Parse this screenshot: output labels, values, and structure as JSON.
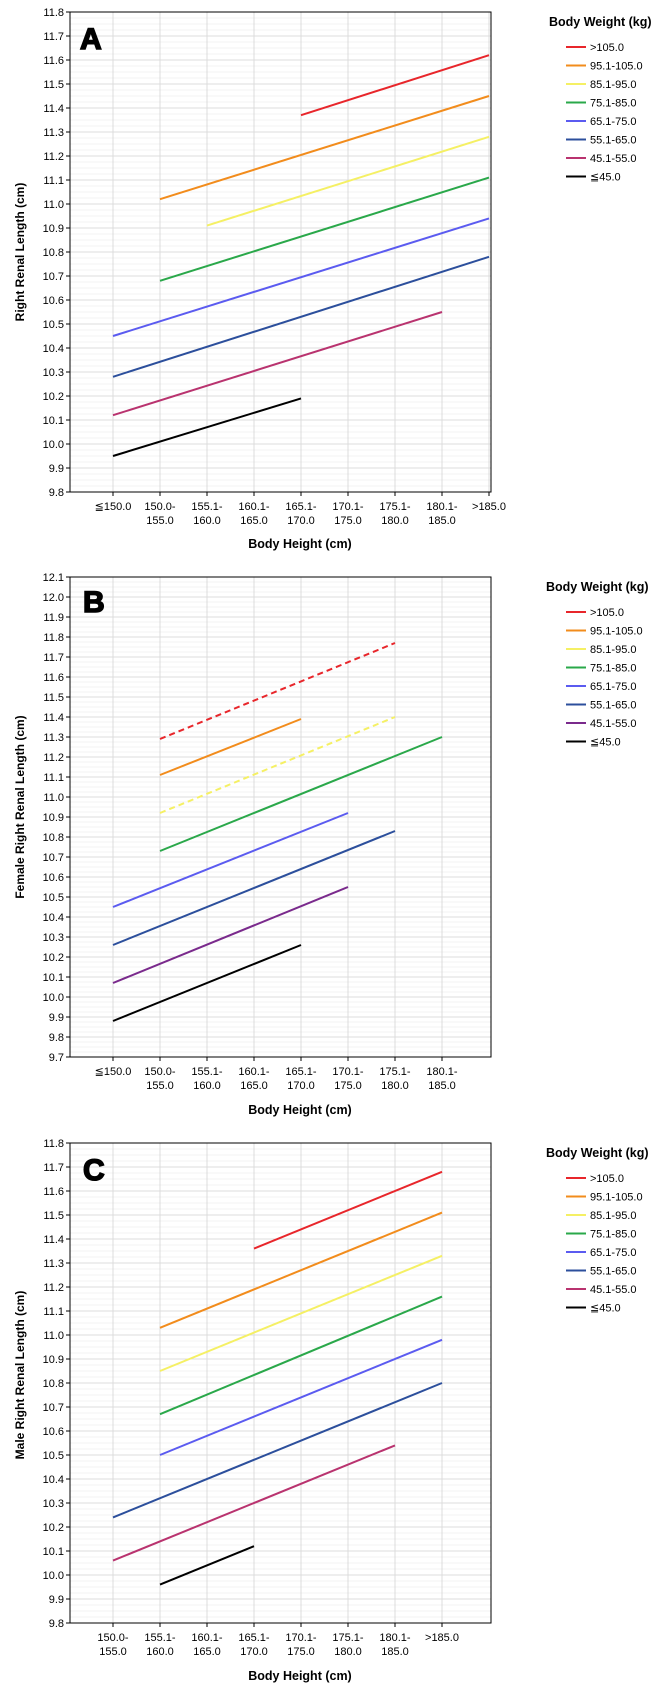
{
  "panels": [
    {
      "label": "A",
      "ylabel": "Right Renal Length (cm)",
      "xlabel": "Body Height (cm)",
      "legend_title": "Body Weight (kg)"
    },
    {
      "label": "B",
      "ylabel": "Female Right Renal Length (cm)",
      "xlabel": "Body Height (cm)",
      "legend_title": "Body Weight (kg)"
    },
    {
      "label": "C",
      "ylabel": "Male Right Renal Length (cm)",
      "xlabel": "Body Height (cm)",
      "legend_title": "Body Weight (kg)"
    }
  ],
  "chart_data": [
    {
      "type": "line",
      "title": "A",
      "xlabel": "Body Height (cm)",
      "ylabel": "Right Renal Length (cm)",
      "legend_title": "Body Weight (kg)",
      "legend_position": "right",
      "grid": true,
      "categories": [
        "≦150.0",
        "150.0-155.0",
        "155.1-160.0",
        "160.1-165.0",
        "165.1-170.0",
        "170.1-175.0",
        "175.1-180.0",
        "180.1-185.0",
        ">185.0"
      ],
      "ylim": [
        9.8,
        11.8
      ],
      "yticks": [
        "9.8",
        "9.9",
        "10.0",
        "10.1",
        "10.2",
        "10.3",
        "10.4",
        "10.5",
        "10.6",
        "10.7",
        "10.8",
        "10.9",
        "11.0",
        "11.1",
        "11.2",
        "11.3",
        "11.4",
        "11.5",
        "11.6",
        "11.7",
        "11.8"
      ],
      "series": [
        {
          "name": ">105.0",
          "color": "#e8262b",
          "style": "solid",
          "start": 4,
          "end": 8,
          "y_start": 11.37,
          "y_end": 11.62
        },
        {
          "name": "95.1-105.0",
          "color": "#f28c1c",
          "style": "solid",
          "start": 1,
          "end": 8,
          "y_start": 11.02,
          "y_end": 11.45
        },
        {
          "name": "85.1-95.0",
          "color": "#f5f064",
          "style": "solid",
          "start": 2,
          "end": 8,
          "y_start": 10.91,
          "y_end": 11.28
        },
        {
          "name": "75.1-85.0",
          "color": "#2aa84a",
          "style": "solid",
          "start": 1,
          "end": 8,
          "y_start": 10.68,
          "y_end": 11.11
        },
        {
          "name": "65.1-75.0",
          "color": "#5b5bf0",
          "style": "solid",
          "start": 0,
          "end": 8,
          "y_start": 10.45,
          "y_end": 10.94
        },
        {
          "name": "55.1-65.0",
          "color": "#2c4f9c",
          "style": "solid",
          "start": 0,
          "end": 8,
          "y_start": 10.28,
          "y_end": 10.78
        },
        {
          "name": "45.1-55.0",
          "color": "#b9336f",
          "style": "solid",
          "start": 0,
          "end": 7,
          "y_start": 10.12,
          "y_end": 10.55
        },
        {
          "name": "≦45.0",
          "color": "#000000",
          "style": "solid",
          "start": 0,
          "end": 4,
          "y_start": 9.95,
          "y_end": 10.19
        }
      ]
    },
    {
      "type": "line",
      "title": "B",
      "xlabel": "Body Height (cm)",
      "ylabel": "Female Right Renal Length (cm)",
      "legend_title": "Body Weight (kg)",
      "legend_position": "right",
      "grid": true,
      "categories": [
        "≦150.0",
        "150.0-155.0",
        "155.1-160.0",
        "160.1-165.0",
        "165.1-170.0",
        "170.1-175.0",
        "175.1-180.0",
        "180.1-185.0"
      ],
      "ylim": [
        9.7,
        12.1
      ],
      "yticks": [
        "9.7",
        "9.8",
        "9.9",
        "10.0",
        "10.1",
        "10.2",
        "10.3",
        "10.4",
        "10.5",
        "10.6",
        "10.7",
        "10.8",
        "10.9",
        "11.0",
        "11.1",
        "11.2",
        "11.3",
        "11.4",
        "11.5",
        "11.6",
        "11.7",
        "11.8",
        "11.9",
        "12.0",
        "12.1"
      ],
      "series": [
        {
          "name": ">105.0",
          "color": "#e8262b",
          "style": "dashed",
          "start": 1,
          "end": 6,
          "y_start": 11.29,
          "y_end": 11.77
        },
        {
          "name": "95.1-105.0",
          "color": "#f28c1c",
          "style": "solid",
          "start": 1,
          "end": 4,
          "y_start": 11.11,
          "y_end": 11.39
        },
        {
          "name": "85.1-95.0",
          "color": "#f5f064",
          "style": "dashed",
          "start": 1,
          "end": 6,
          "y_start": 10.92,
          "y_end": 11.4
        },
        {
          "name": "75.1-85.0",
          "color": "#2aa84a",
          "style": "solid",
          "start": 1,
          "end": 7,
          "y_start": 10.73,
          "y_end": 11.3
        },
        {
          "name": "65.1-75.0",
          "color": "#5b5bf0",
          "style": "solid",
          "start": 0,
          "end": 5,
          "y_start": 10.45,
          "y_end": 10.92
        },
        {
          "name": "55.1-65.0",
          "color": "#2c4f9c",
          "style": "solid",
          "start": 0,
          "end": 6,
          "y_start": 10.26,
          "y_end": 10.83
        },
        {
          "name": "45.1-55.0",
          "color": "#7a2a8c",
          "style": "solid",
          "start": 0,
          "end": 5,
          "y_start": 10.07,
          "y_end": 10.55
        },
        {
          "name": "≦45.0",
          "color": "#000000",
          "style": "solid",
          "start": 0,
          "end": 4,
          "y_start": 9.88,
          "y_end": 10.26
        }
      ]
    },
    {
      "type": "line",
      "title": "C",
      "xlabel": "Body Height (cm)",
      "ylabel": "Male Right Renal Length (cm)",
      "legend_title": "Body Weight (kg)",
      "legend_position": "right",
      "grid": true,
      "categories": [
        "150.0-155.0",
        "155.1-160.0",
        "160.1-165.0",
        "165.1-170.0",
        "170.1-175.0",
        "175.1-180.0",
        "180.1-185.0",
        ">185.0"
      ],
      "ylim": [
        9.8,
        11.8
      ],
      "yticks": [
        "9.8",
        "9.9",
        "10.0",
        "10.1",
        "10.2",
        "10.3",
        "10.4",
        "10.5",
        "10.6",
        "10.7",
        "10.8",
        "10.9",
        "11.0",
        "11.1",
        "11.2",
        "11.3",
        "11.4",
        "11.5",
        "11.6",
        "11.7",
        "11.8"
      ],
      "series": [
        {
          "name": ">105.0",
          "color": "#e8262b",
          "style": "solid",
          "start": 3,
          "end": 7,
          "y_start": 11.36,
          "y_end": 11.68
        },
        {
          "name": "95.1-105.0",
          "color": "#f28c1c",
          "style": "solid",
          "start": 1,
          "end": 7,
          "y_start": 11.03,
          "y_end": 11.51
        },
        {
          "name": "85.1-95.0",
          "color": "#f5f064",
          "style": "solid",
          "start": 1,
          "end": 7,
          "y_start": 10.85,
          "y_end": 11.33
        },
        {
          "name": "75.1-85.0",
          "color": "#2aa84a",
          "style": "solid",
          "start": 1,
          "end": 7,
          "y_start": 10.67,
          "y_end": 11.16
        },
        {
          "name": "65.1-75.0",
          "color": "#5b5bf0",
          "style": "solid",
          "start": 1,
          "end": 7,
          "y_start": 10.5,
          "y_end": 10.98
        },
        {
          "name": "55.1-65.0",
          "color": "#2c4f9c",
          "style": "solid",
          "start": 0,
          "end": 7,
          "y_start": 10.24,
          "y_end": 10.8
        },
        {
          "name": "45.1-55.0",
          "color": "#b9336f",
          "style": "solid",
          "start": 0,
          "end": 6,
          "y_start": 10.06,
          "y_end": 10.54
        },
        {
          "name": "≦45.0",
          "color": "#000000",
          "style": "solid",
          "start": 1,
          "end": 3,
          "y_start": 9.96,
          "y_end": 10.12
        }
      ]
    }
  ]
}
